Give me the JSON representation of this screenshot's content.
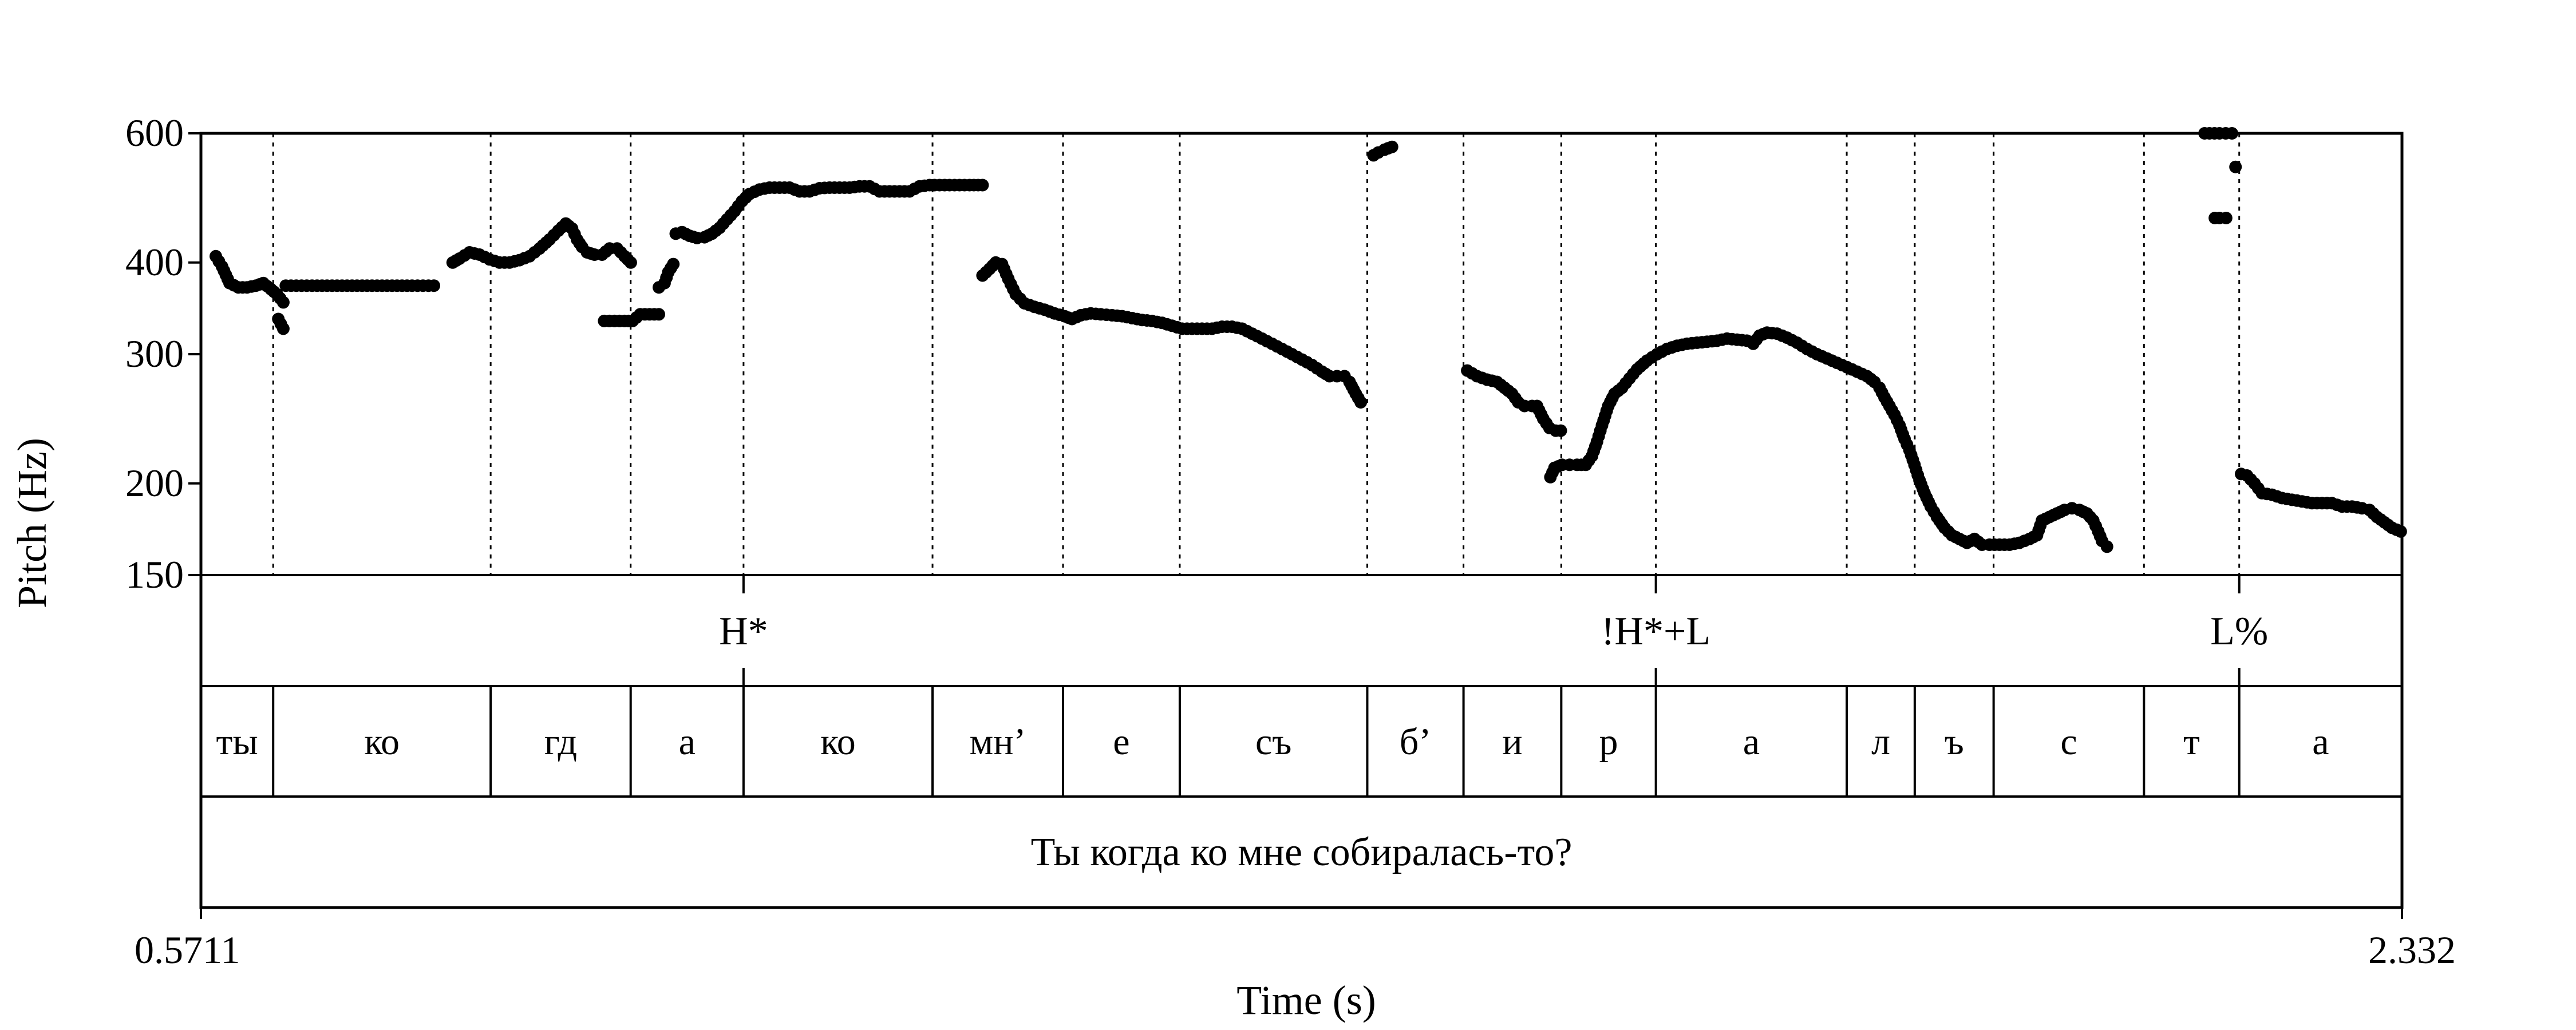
{
  "chart_data": {
    "type": "scatter",
    "ylabel": "Pitch (Hz)",
    "xlabel": "Time (s)",
    "y_scale": "log",
    "ylim": [
      150,
      600
    ],
    "y_ticks": [
      150,
      200,
      300,
      400,
      600
    ],
    "xlim": [
      0.5711,
      2.332
    ],
    "x_tick_labels": [
      "0.5711",
      "2.332"
    ],
    "boundaries": [
      0.6289,
      0.8029,
      0.9149,
      1.0052,
      1.1564,
      1.2608,
      1.3542,
      1.5042,
      1.5812,
      1.6594,
      1.7351,
      1.8878,
      1.9422,
      2.0053,
      2.1256,
      2.2018
    ],
    "tones": [
      {
        "time": 1.0052,
        "label": "H*"
      },
      {
        "time": 1.7351,
        "label": "!H*+L"
      },
      {
        "time": 2.2018,
        "label": "L%"
      }
    ],
    "syllables": [
      "ты",
      "ко",
      "гд",
      "а",
      "ко",
      "мн’",
      "е",
      "съ",
      "б’",
      "и",
      "р",
      "а",
      "л",
      "ъ",
      "с",
      "т",
      "а"
    ],
    "sentence": "Ты когда ко мне собиралась-то?",
    "pitch_segments": [
      {
        "points": [
          [
            0.583,
            408
          ],
          [
            0.588,
            395
          ],
          [
            0.594,
            375
          ],
          [
            0.601,
            370
          ],
          [
            0.608,
            370
          ],
          [
            0.615,
            372
          ],
          [
            0.621,
            375
          ],
          [
            0.627,
            368
          ],
          [
            0.632,
            362
          ],
          [
            0.637,
            353
          ]
        ]
      },
      {
        "points": [
          [
            0.633,
            335
          ],
          [
            0.637,
            325
          ]
        ]
      },
      {
        "points": [
          [
            0.639,
            372
          ],
          [
            0.66,
            372
          ],
          [
            0.68,
            372
          ],
          [
            0.7,
            372
          ],
          [
            0.72,
            372
          ],
          [
            0.74,
            372
          ],
          [
            0.7575,
            372
          ]
        ]
      },
      {
        "points": [
          [
            0.7725,
            400
          ],
          [
            0.778,
            405
          ],
          [
            0.786,
            413
          ],
          [
            0.794,
            410
          ],
          [
            0.802,
            404
          ],
          [
            0.81,
            400
          ],
          [
            0.818,
            400
          ],
          [
            0.826,
            403
          ],
          [
            0.834,
            408
          ],
          [
            0.842,
            418
          ],
          [
            0.85,
            430
          ],
          [
            0.857,
            442
          ],
          [
            0.863,
            452
          ],
          [
            0.868,
            445
          ],
          [
            0.872,
            430
          ],
          [
            0.876,
            420
          ],
          [
            0.88,
            413
          ],
          [
            0.886,
            410
          ],
          [
            0.892,
            410
          ],
          [
            0.898,
            418
          ],
          [
            0.904,
            418
          ],
          [
            0.91,
            408
          ],
          [
            0.915,
            400
          ]
        ]
      },
      {
        "points": [
          [
            0.8937,
            333
          ],
          [
            0.902,
            333
          ],
          [
            0.91,
            333
          ],
          [
            0.9164,
            333
          ],
          [
            0.9225,
            340
          ],
          [
            0.93,
            340
          ],
          [
            0.9375,
            340
          ]
        ]
      },
      {
        "points": [
          [
            0.9375,
            370
          ],
          [
            0.942,
            375
          ],
          [
            0.945,
            388
          ],
          [
            0.949,
            398
          ]
        ]
      },
      {
        "points": [
          [
            0.951,
            438
          ],
          [
            0.956,
            440
          ],
          [
            0.962,
            435
          ],
          [
            0.968,
            432
          ],
          [
            0.974,
            433
          ],
          [
            0.98,
            438
          ],
          [
            0.986,
            446
          ],
          [
            0.992,
            458
          ],
          [
            0.998,
            470
          ],
          [
            1.004,
            485
          ],
          [
            1.01,
            496
          ],
          [
            1.018,
            503
          ],
          [
            1.026,
            506
          ],
          [
            1.034,
            506
          ],
          [
            1.042,
            506
          ],
          [
            1.05,
            500
          ],
          [
            1.058,
            500
          ],
          [
            1.066,
            505
          ],
          [
            1.074,
            506
          ],
          [
            1.082,
            506
          ],
          [
            1.09,
            506
          ],
          [
            1.098,
            508
          ],
          [
            1.106,
            508
          ],
          [
            1.114,
            500
          ],
          [
            1.122,
            500
          ],
          [
            1.13,
            500
          ],
          [
            1.138,
            500
          ],
          [
            1.146,
            508
          ],
          [
            1.154,
            510
          ],
          [
            1.162,
            510
          ],
          [
            1.17,
            510
          ],
          [
            1.178,
            510
          ],
          [
            1.186,
            510
          ],
          [
            1.1964,
            510
          ]
        ]
      },
      {
        "points": [
          [
            1.1964,
            384
          ],
          [
            1.202,
            392
          ],
          [
            1.207,
            400
          ],
          [
            1.212,
            398
          ],
          [
            1.217,
            380
          ],
          [
            1.223,
            362
          ],
          [
            1.23,
            352
          ],
          [
            1.238,
            348
          ],
          [
            1.246,
            345
          ],
          [
            1.254,
            341
          ],
          [
            1.262,
            338
          ],
          [
            1.268,
            335
          ],
          [
            1.275,
            339
          ],
          [
            1.283,
            341
          ],
          [
            1.291,
            340
          ],
          [
            1.3,
            339
          ],
          [
            1.308,
            338
          ],
          [
            1.316,
            336
          ],
          [
            1.324,
            334
          ],
          [
            1.332,
            333
          ],
          [
            1.34,
            331
          ],
          [
            1.348,
            328
          ],
          [
            1.356,
            325
          ],
          [
            1.364,
            325
          ],
          [
            1.372,
            325
          ],
          [
            1.38,
            325
          ],
          [
            1.388,
            327
          ],
          [
            1.396,
            327
          ],
          [
            1.404,
            325
          ],
          [
            1.412,
            320
          ],
          [
            1.42,
            315
          ],
          [
            1.428,
            310
          ],
          [
            1.436,
            305
          ],
          [
            1.444,
            300
          ],
          [
            1.452,
            295
          ],
          [
            1.46,
            290
          ],
          [
            1.468,
            284
          ],
          [
            1.474,
            280
          ],
          [
            1.48,
            280
          ],
          [
            1.486,
            280
          ],
          [
            1.49,
            275
          ],
          [
            1.495,
            265
          ],
          [
            1.499,
            258
          ]
        ]
      },
      {
        "points": [
          [
            1.5092,
            560
          ],
          [
            1.513,
            565
          ],
          [
            1.518,
            570
          ],
          [
            1.524,
            575
          ]
        ]
      },
      {
        "points": [
          [
            1.5842,
            285
          ],
          [
            1.592,
            280
          ],
          [
            1.6,
            277
          ],
          [
            1.608,
            275
          ],
          [
            1.614,
            270
          ],
          [
            1.62,
            265
          ],
          [
            1.625,
            258
          ],
          [
            1.63,
            255
          ],
          [
            1.636,
            255
          ],
          [
            1.64,
            255
          ],
          [
            1.645,
            245
          ],
          [
            1.65,
            238
          ],
          [
            1.655,
            236
          ],
          [
            1.659,
            236
          ]
        ]
      },
      {
        "points": [
          [
            1.6507,
            204
          ],
          [
            1.654,
            210
          ],
          [
            1.66,
            212
          ],
          [
            1.666,
            212
          ],
          [
            1.672,
            212
          ],
          [
            1.679,
            212
          ],
          [
            1.684,
            218
          ],
          [
            1.688,
            228
          ],
          [
            1.692,
            240
          ],
          [
            1.697,
            255
          ],
          [
            1.702,
            265
          ],
          [
            1.708,
            270
          ],
          [
            1.714,
            278
          ],
          [
            1.72,
            286
          ],
          [
            1.728,
            294
          ],
          [
            1.736,
            300
          ],
          [
            1.744,
            305
          ],
          [
            1.752,
            308
          ],
          [
            1.76,
            310
          ],
          [
            1.768,
            311
          ],
          [
            1.776,
            312
          ],
          [
            1.784,
            313
          ],
          [
            1.792,
            315
          ],
          [
            1.8,
            314
          ],
          [
            1.808,
            313
          ],
          [
            1.813,
            310
          ],
          [
            1.818,
            318
          ],
          [
            1.824,
            321
          ],
          [
            1.832,
            320
          ],
          [
            1.84,
            316
          ],
          [
            1.848,
            311
          ],
          [
            1.856,
            305
          ],
          [
            1.864,
            300
          ],
          [
            1.872,
            296
          ],
          [
            1.88,
            292
          ],
          [
            1.888,
            288
          ],
          [
            1.896,
            284
          ],
          [
            1.904,
            280
          ],
          [
            1.91,
            275
          ],
          [
            1.914,
            270
          ],
          [
            1.918,
            262
          ],
          [
            1.922,
            255
          ],
          [
            1.926,
            248
          ],
          [
            1.93,
            240
          ],
          [
            1.934,
            230
          ],
          [
            1.938,
            222
          ],
          [
            1.942,
            212
          ],
          [
            1.946,
            202
          ],
          [
            1.95,
            194
          ],
          [
            1.955,
            186
          ],
          [
            1.96,
            180
          ],
          [
            1.966,
            174
          ],
          [
            1.972,
            170
          ],
          [
            1.978,
            168
          ],
          [
            1.984,
            166
          ],
          [
            1.99,
            168
          ],
          [
            1.996,
            165
          ],
          [
            2.002,
            165
          ],
          [
            2.01,
            165
          ],
          [
            2.018,
            165
          ],
          [
            2.026,
            166
          ],
          [
            2.034,
            168
          ],
          [
            2.04,
            170
          ],
          [
            2.044,
            178
          ],
          [
            2.05,
            180
          ],
          [
            2.056,
            182
          ],
          [
            2.062,
            184
          ],
          [
            2.068,
            185
          ],
          [
            2.074,
            184
          ],
          [
            2.08,
            182
          ],
          [
            2.085,
            178
          ],
          [
            2.089,
            172
          ],
          [
            2.092,
            167
          ],
          [
            2.096,
            164
          ]
        ]
      },
      {
        "points": [
          [
            2.1741,
            600
          ],
          [
            2.178,
            600
          ],
          [
            2.182,
            600
          ],
          [
            2.186,
            600
          ],
          [
            2.196,
            600
          ]
        ]
      },
      {
        "points": [
          [
            2.1823,
            460
          ],
          [
            2.186,
            460
          ],
          [
            2.1913,
            460
          ]
        ]
      },
      {
        "points": [
          [
            2.1988,
            540
          ]
        ]
      },
      {
        "points": [
          [
            2.2033,
            206
          ],
          [
            2.208,
            205
          ],
          [
            2.214,
            200
          ],
          [
            2.22,
            194
          ],
          [
            2.228,
            193
          ],
          [
            2.236,
            191
          ],
          [
            2.244,
            190
          ],
          [
            2.252,
            189
          ],
          [
            2.26,
            188
          ],
          [
            2.268,
            188
          ],
          [
            2.276,
            188
          ],
          [
            2.284,
            186
          ],
          [
            2.292,
            186
          ],
          [
            2.3,
            185
          ],
          [
            2.306,
            184
          ],
          [
            2.312,
            180
          ],
          [
            2.318,
            177
          ],
          [
            2.324,
            174
          ],
          [
            2.331,
            172
          ]
        ]
      }
    ]
  }
}
